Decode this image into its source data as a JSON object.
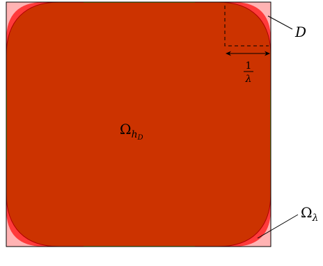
{
  "labels": {
    "square_D": "D",
    "omega_lambda": "Ω",
    "omega_lambda_sub": "λ",
    "omega_hD": "Ω",
    "omega_hD_sub": "h",
    "omega_hD_subsub": "D",
    "fraction_numerator": "1",
    "fraction_denominator": "λ"
  },
  "colors": {
    "square_fill": "#ffb3b3",
    "omega_lambda_fill": "#ff3b3b",
    "omega_hD_fill": "#cc3300",
    "outline": "#000000",
    "inner_outline": "#8a8a00"
  }
}
